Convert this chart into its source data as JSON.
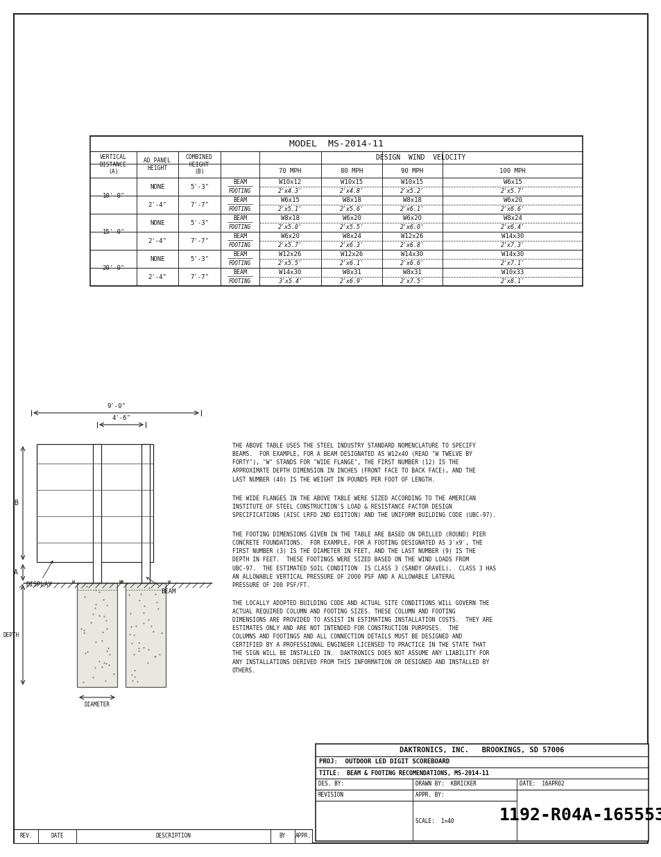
{
  "bg_color": "#f0f0eb",
  "title": "MODEL  MS-2014-11",
  "wind_header": "DESIGN  WIND  VELOCITY",
  "table_data": [
    [
      "NONE",
      "5'-3\"",
      "BEAM",
      "W10x12",
      "W10x15",
      "W10x15",
      "W6x15"
    ],
    [
      "",
      "",
      "FOOTING",
      "2'x4.3'",
      "2'x4.8'",
      "2'x5.2'",
      "2'x5.7'"
    ],
    [
      "2'-4\"",
      "7'-7\"",
      "BEAM",
      "W6x15",
      "W8x18",
      "W8x18",
      "W6x20"
    ],
    [
      "",
      "",
      "FOOTING",
      "2'x5.1'",
      "2'x5.6'",
      "2'x6.1'",
      "2'x6.6'"
    ],
    [
      "NONE",
      "5'-3\"",
      "BEAM",
      "W8x18",
      "W6x20",
      "W6x20",
      "W8x24"
    ],
    [
      "",
      "",
      "FOOTING",
      "2'x5.0'",
      "2'x5.5'",
      "2'x6.0'",
      "2'x6.4'"
    ],
    [
      "2'-4\"",
      "7'-7\"",
      "BEAM",
      "W6x20",
      "W8x24",
      "W12x26",
      "W14x30"
    ],
    [
      "",
      "",
      "FOOTING",
      "2'x5.7'",
      "2'x6.3'",
      "2'x6.8'",
      "2'x7.3'"
    ],
    [
      "NONE",
      "5'-3\"",
      "BEAM",
      "W12x26",
      "W12x26",
      "W14x30",
      "W14x30"
    ],
    [
      "",
      "",
      "FOOTING",
      "2'x5.5'",
      "2'x6.1'",
      "2'x6.6'",
      "2'x7.1'"
    ],
    [
      "2'-4\"",
      "7'-7\"",
      "BEAM",
      "W14x30",
      "W8x31",
      "W8x31",
      "W10x33"
    ],
    [
      "",
      "",
      "FOOTING",
      "3'x5.4'",
      "2'x6.9'",
      "2'x7.5'",
      "2'x8.1'"
    ]
  ],
  "vert_labels": [
    "10'-0\"",
    "15'-0\"",
    "20'-0\""
  ],
  "text_blocks": [
    "THE ABOVE TABLE USES THE STEEL INDUSTRY STANDARD NOMENCLATURE TO SPECIFY\nBEAMS.  FOR EXAMPLE, FOR A BEAM DESIGNATED AS W12x40 (READ \"W TWELVE BY\nFORTY\"), \"W\" STANDS FOR \"WIDE FLANGE\", THE FIRST NUMBER (12) IS THE\nAPPROXIMATE DEPTH DIMENSION IN INCHES (FRONT FACE TO BACK FACE), AND THE\nLAST NUMBER (40) IS THE WEIGHT IN POUNDS PER FOOT OF LENGTH.",
    "THE WIDE FLANGES IN THE ABOVE TABLE WERE SIZED ACCORDING TO THE AMERICAN\nINSTITUTE OF STEEL CONSTRUCTION'S LOAD & RESISTANCE FACTOR DESIGN\nSPECIFICATIONS (AISC LRFD 2ND EDITION) AND THE UNIFORM BUILDING CODE (UBC-97).",
    "THE FOOTING DIMENSIONS GIVEN IN THE TABLE ARE BASED ON DRILLED (ROUND) PIER\nCONCRETE FOUNDATIONS.  FOR EXAMPLE, FOR A FOOTING DESIGNATED AS 3'x9', THE\nFIRST NUMBER (3) IS THE DIAMETER IN FEET, AND THE LAST NUMBER (9) IS THE\nDEPTH IN FEET.  THESE FOOTINGS WERE SIZED BASED ON THE WIND LOADS FROM\nUBC-97.  THE ESTIMATED SOIL CONDITION  IS CLASS 3 (SANDY GRAVEL).  CLASS 3 HAS\nAN ALLOWABLE VERTICAL PRESSURE OF 2000 PSF AND A ALLOWABLE LATERAL\nPRESSURE OF 200 PSF/FT.",
    "THE LOCALLY ADOPTED BUILDING CODE AND ACTUAL SITE CONDITIONS WILL GOVERN THE\nACTUAL REQUIRED COLUMN AND FOOTING SIZES. THESE COLUMN AND FOOTING\nDIMENSIONS ARE PROVIDED TO ASSIST IN ESTIMATING INSTALLATION COSTS.  THEY ARE\nESTIMATES ONLY AND ARE NOT INTENDED FOR CONSTRUCTION PURPOSES.  THE\nCOLUMNS AND FOOTINGS AND ALL CONNECTION DETAILS MUST BE DESIGNED AND\nCERTIFIED BY A PROFESSIONAL ENGINEER LICENSED TO PRACTICE IN THE STATE THAT\nTHE SIGN WILL BE INSTALLED IN.  DAKTRONICS DOES NOT ASSUME ANY LIABILITY FOR\nANY INSTALLATIONS DERIVED FROM THIS INFORMATION OR DESIGNED AND INSTALLED BY\nOTHERS."
  ],
  "footer": {
    "company": "DAKTRONICS, INC.   BROOKINGS, SD 57006",
    "proj_label": "PROJ:",
    "proj": "OUTDOOR LED DIGIT SCOREBOARD",
    "title_label": "TITLE:",
    "ftitle": "BEAM & FOOTING RECOMENDATIONS, MS-2014-11",
    "des_label": "DES. BY:",
    "drawn_label": "DRAWN BY:",
    "drawn": "KBRICKER",
    "date_label": "DATE:",
    "date": "16APR02",
    "revision_label": "REVISION",
    "appr_label": "APPR. BY:",
    "scale_label": "SCALE:",
    "scale": "1=40",
    "doc_num": "1192-R04A-165553"
  },
  "diagram": {
    "dim1": "9'-0\"",
    "dim2": "4'-6\"",
    "label_b": "B",
    "label_a": "A",
    "label_display": "DISPLAY",
    "label_beam": "BEAM",
    "label_depth": "DEPTH",
    "label_diameter": "DIAMETER"
  }
}
